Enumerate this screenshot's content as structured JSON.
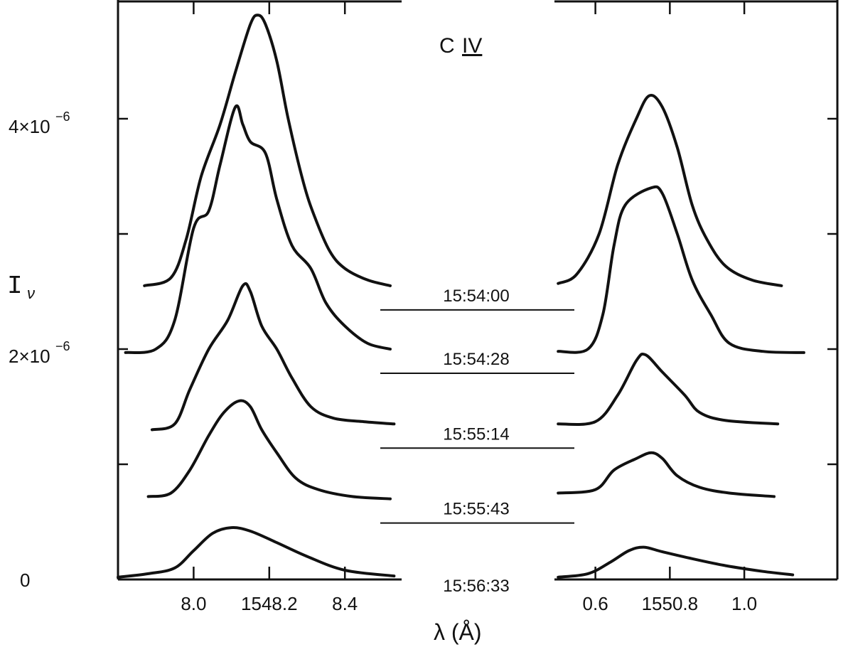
{
  "chart_data": {
    "type": "line",
    "title": "C IV",
    "title_element": "C",
    "title_ion": "IV",
    "xlabel": "λ (Å)",
    "ylabel_main": "I",
    "ylabel_sub": "ν",
    "y_tick_labels": {
      "zero": "0",
      "two_mantissa": "2×10",
      "two_exp": "−6",
      "four_mantissa": "4×10",
      "four_exp": "−6"
    },
    "y_ticks": [
      0,
      1e-06,
      2e-06,
      3e-06,
      4e-06
    ],
    "ylim": [
      0,
      5e-06
    ],
    "x_left_panel": {
      "tick_labels": [
        "8.0",
        "1548.2",
        "8.4"
      ],
      "tick_values": [
        1548.0,
        1548.2,
        1548.4
      ],
      "xlim": [
        1547.8,
        1548.55
      ]
    },
    "x_right_panel": {
      "tick_labels": [
        "0.6",
        "1550.8",
        "1.0"
      ],
      "tick_values": [
        1550.6,
        1550.8,
        1551.0
      ],
      "xlim": [
        1550.49,
        1551.25
      ]
    },
    "series": [
      {
        "name": "15:54:00",
        "left": [
          [
            1547.87,
            2.55e-06
          ],
          [
            1547.94,
            2.62e-06
          ],
          [
            1547.98,
            2.95e-06
          ],
          [
            1548.02,
            3.5e-06
          ],
          [
            1548.07,
            3.95e-06
          ],
          [
            1548.11,
            4.4e-06
          ],
          [
            1548.15,
            4.82e-06
          ],
          [
            1548.17,
            4.9e-06
          ],
          [
            1548.19,
            4.82e-06
          ],
          [
            1548.22,
            4.5e-06
          ],
          [
            1548.25,
            4e-06
          ],
          [
            1548.29,
            3.45e-06
          ],
          [
            1548.32,
            3.15e-06
          ],
          [
            1548.36,
            2.85e-06
          ],
          [
            1548.4,
            2.7e-06
          ],
          [
            1548.46,
            2.6e-06
          ],
          [
            1548.52,
            2.55e-06
          ]
        ],
        "right": [
          [
            1550.5,
            2.57e-06
          ],
          [
            1550.55,
            2.65e-06
          ],
          [
            1550.61,
            3e-06
          ],
          [
            1550.66,
            3.6e-06
          ],
          [
            1550.71,
            4e-06
          ],
          [
            1550.745,
            4.2e-06
          ],
          [
            1550.78,
            4.1e-06
          ],
          [
            1550.82,
            3.75e-06
          ],
          [
            1550.86,
            3.25e-06
          ],
          [
            1550.9,
            2.95e-06
          ],
          [
            1550.95,
            2.72e-06
          ],
          [
            1551.02,
            2.6e-06
          ],
          [
            1551.1,
            2.55e-06
          ]
        ]
      },
      {
        "name": "15:54:28",
        "left": [
          [
            1547.82,
            1.97e-06
          ],
          [
            1547.9,
            2e-06
          ],
          [
            1547.95,
            2.25e-06
          ],
          [
            1548.0,
            3.05e-06
          ],
          [
            1548.04,
            3.2e-06
          ],
          [
            1548.07,
            3.6e-06
          ],
          [
            1548.11,
            4.1e-06
          ],
          [
            1548.13,
            3.95e-06
          ],
          [
            1548.15,
            3.8e-06
          ],
          [
            1548.19,
            3.7e-06
          ],
          [
            1548.22,
            3.3e-06
          ],
          [
            1548.26,
            2.9e-06
          ],
          [
            1548.31,
            2.7e-06
          ],
          [
            1548.35,
            2.4e-06
          ],
          [
            1548.4,
            2.2e-06
          ],
          [
            1548.46,
            2.05e-06
          ],
          [
            1548.52,
            2e-06
          ]
        ],
        "right": [
          [
            1550.5,
            1.98e-06
          ],
          [
            1550.58,
            2e-06
          ],
          [
            1550.62,
            2.3e-06
          ],
          [
            1550.65,
            2.9e-06
          ],
          [
            1550.68,
            3.25e-06
          ],
          [
            1550.75,
            3.4e-06
          ],
          [
            1550.78,
            3.35e-06
          ],
          [
            1550.82,
            3e-06
          ],
          [
            1550.86,
            2.6e-06
          ],
          [
            1550.91,
            2.3e-06
          ],
          [
            1550.96,
            2.05e-06
          ],
          [
            1551.05,
            1.98e-06
          ],
          [
            1551.16,
            1.97e-06
          ]
        ]
      },
      {
        "name": "15:55:14",
        "left": [
          [
            1547.89,
            1.3e-06
          ],
          [
            1547.95,
            1.35e-06
          ],
          [
            1547.99,
            1.65e-06
          ],
          [
            1548.04,
            2e-06
          ],
          [
            1548.09,
            2.25e-06
          ],
          [
            1548.13,
            2.55e-06
          ],
          [
            1548.15,
            2.5e-06
          ],
          [
            1548.18,
            2.2e-06
          ],
          [
            1548.22,
            2e-06
          ],
          [
            1548.26,
            1.75e-06
          ],
          [
            1548.31,
            1.5e-06
          ],
          [
            1548.37,
            1.4e-06
          ],
          [
            1548.45,
            1.37e-06
          ],
          [
            1548.53,
            1.35e-06
          ]
        ],
        "right": [
          [
            1550.5,
            1.35e-06
          ],
          [
            1550.6,
            1.37e-06
          ],
          [
            1550.66,
            1.6e-06
          ],
          [
            1550.71,
            1.9e-06
          ],
          [
            1550.735,
            1.95e-06
          ],
          [
            1550.78,
            1.8e-06
          ],
          [
            1550.84,
            1.6e-06
          ],
          [
            1550.88,
            1.45e-06
          ],
          [
            1550.95,
            1.38e-06
          ],
          [
            1551.09,
            1.35e-06
          ]
        ]
      },
      {
        "name": "15:55:43",
        "left": [
          [
            1547.88,
            7.2e-07
          ],
          [
            1547.94,
            7.5e-07
          ],
          [
            1547.99,
            9.5e-07
          ],
          [
            1548.04,
            1.25e-06
          ],
          [
            1548.08,
            1.45e-06
          ],
          [
            1548.12,
            1.55e-06
          ],
          [
            1548.15,
            1.5e-06
          ],
          [
            1548.18,
            1.3e-06
          ],
          [
            1548.22,
            1.1e-06
          ],
          [
            1548.27,
            8.8e-07
          ],
          [
            1548.33,
            7.8e-07
          ],
          [
            1548.42,
            7.2e-07
          ],
          [
            1548.52,
            7e-07
          ]
        ],
        "right": [
          [
            1550.5,
            7.5e-07
          ],
          [
            1550.6,
            7.8e-07
          ],
          [
            1550.65,
            9.5e-07
          ],
          [
            1550.71,
            1.05e-06
          ],
          [
            1550.75,
            1.1e-06
          ],
          [
            1550.78,
            1.05e-06
          ],
          [
            1550.82,
            9e-07
          ],
          [
            1550.88,
            8e-07
          ],
          [
            1550.96,
            7.5e-07
          ],
          [
            1551.08,
            7.2e-07
          ]
        ]
      },
      {
        "name": "15:56:33",
        "left": [
          [
            1547.8,
            2e-08
          ],
          [
            1547.88,
            5e-08
          ],
          [
            1547.95,
            1e-07
          ],
          [
            1548.0,
            2.5e-07
          ],
          [
            1548.05,
            4e-07
          ],
          [
            1548.1,
            4.5e-07
          ],
          [
            1548.15,
            4.2e-07
          ],
          [
            1548.22,
            3.2e-07
          ],
          [
            1548.3,
            2e-07
          ],
          [
            1548.4,
            8e-08
          ],
          [
            1548.53,
            3e-08
          ]
        ],
        "right": [
          [
            1550.5,
            2e-08
          ],
          [
            1550.58,
            5e-08
          ],
          [
            1550.64,
            1.5e-07
          ],
          [
            1550.69,
            2.5e-07
          ],
          [
            1550.73,
            2.8e-07
          ],
          [
            1550.78,
            2.4e-07
          ],
          [
            1550.86,
            1.8e-07
          ],
          [
            1550.95,
            1.2e-07
          ],
          [
            1551.05,
            7e-08
          ],
          [
            1551.13,
            4e-08
          ]
        ]
      }
    ],
    "grid": false,
    "legend": "inline labels between panels"
  }
}
